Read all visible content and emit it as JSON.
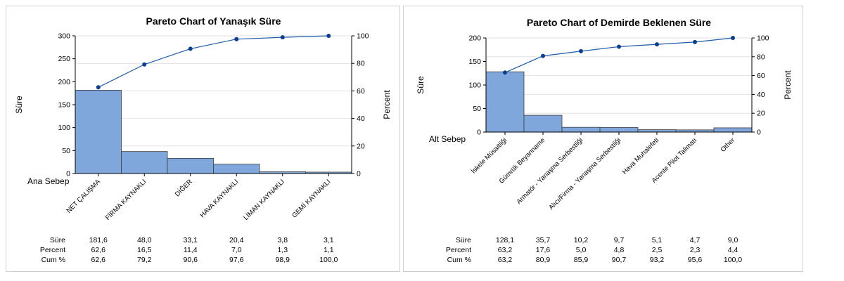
{
  "chart_data": [
    {
      "type": "pareto",
      "title": "Pareto Chart of Yanaşık Süre",
      "xlabel": "Ana Sebep",
      "ylabel": "Süre",
      "y2label": "Percent",
      "ylim": [
        0,
        300
      ],
      "yticks": [
        0,
        50,
        100,
        150,
        200,
        250,
        300
      ],
      "y2lim": [
        0,
        100
      ],
      "y2ticks": [
        0,
        20,
        40,
        60,
        80,
        100
      ],
      "categories": [
        "NET ÇALIŞMA",
        "FİRMA KAYNAKLI",
        "DİĞER",
        "HAVA KAYNAKLI",
        "LİMAN KAYNAKLI",
        "GEMİ KAYNAKLI"
      ],
      "values": [
        181.6,
        48.0,
        33.1,
        20.4,
        3.8,
        3.1
      ],
      "cum_percent": [
        62.6,
        79.2,
        90.6,
        97.6,
        98.9,
        100.0
      ],
      "table": {
        "row_labels": [
          "Süre",
          "Percent",
          "Cum %"
        ],
        "rows": [
          [
            "181,6",
            "48,0",
            "33,1",
            "20,4",
            "3,8",
            "3,1"
          ],
          [
            "62,6",
            "16,5",
            "11,4",
            "7,0",
            "1,3",
            "1,1"
          ],
          [
            "62,6",
            "79,2",
            "90,6",
            "97,6",
            "98,9",
            "100,0"
          ]
        ]
      }
    },
    {
      "type": "pareto",
      "title": "Pareto Chart of Demirde Beklenen Süre",
      "xlabel": "Alt Sebep",
      "ylabel": "Süre",
      "y2label": "Percent",
      "ylim": [
        0,
        200
      ],
      "yticks": [
        0,
        50,
        100,
        150,
        200
      ],
      "y2lim": [
        0,
        100
      ],
      "y2ticks": [
        0,
        20,
        40,
        60,
        80,
        100
      ],
      "categories": [
        "İskele Müsaitliği",
        "Gümrük Beyanname",
        "Armatör - Yanaşma Serbestliği",
        "Alıcı/Firma - Yanaşma Serbestliği",
        "Hava Muhalefeti",
        "Acente Pilot Talimatı",
        "Other"
      ],
      "values": [
        128.1,
        35.7,
        10.2,
        9.7,
        5.1,
        4.7,
        9.0
      ],
      "cum_percent": [
        63.2,
        80.9,
        85.9,
        90.7,
        93.2,
        95.6,
        100.0
      ],
      "table": {
        "row_labels": [
          "Süre",
          "Percent",
          "Cum %"
        ],
        "rows": [
          [
            "128,1",
            "35,7",
            "10,2",
            "9,7",
            "5,1",
            "4,7",
            "9,0"
          ],
          [
            "63,2",
            "17,6",
            "5,0",
            "4,8",
            "2,5",
            "2,3",
            "4,4"
          ],
          [
            "63,2",
            "80,9",
            "85,9",
            "90,7",
            "93,2",
            "95,6",
            "100,0"
          ]
        ]
      }
    }
  ],
  "colors": {
    "bar_fill": "#7fa7dc",
    "bar_stroke": "#3c3c3c",
    "line": "#1f5aa6",
    "marker": "#0b3f8a",
    "grid": "#e2e2e2"
  }
}
